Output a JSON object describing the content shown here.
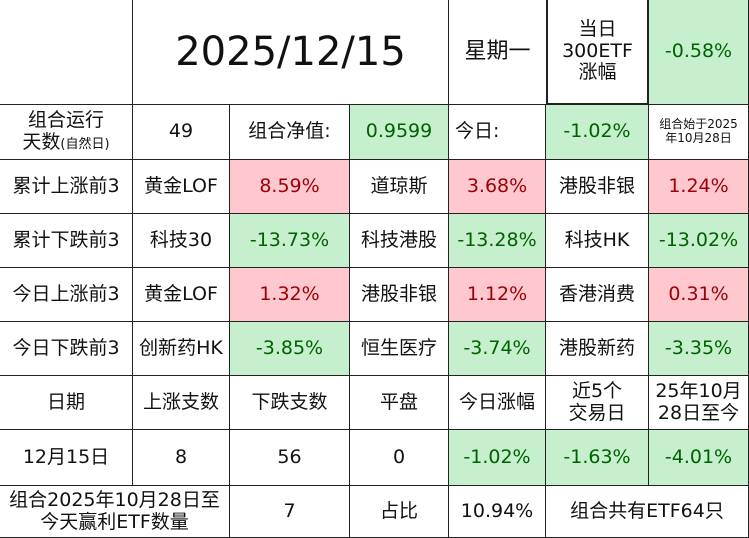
{
  "header": {
    "date": "2025/12/15",
    "weekday": "星期一",
    "etf_label_l1": "当日",
    "etf_label_l2": "300ETF",
    "etf_label_l3": "涨幅",
    "etf_change": "-0.58%"
  },
  "row_nav": {
    "label_main": "组合运行",
    "label_sub1": "天数",
    "label_sub2": "(自然日)",
    "days": "49",
    "nav_label": "组合净值:",
    "nav_value": "0.9599",
    "today_label": "今日:",
    "today_value": "-1.02%",
    "start_l1": "组合始于2025",
    "start_l2": "年10月28日"
  },
  "rows": [
    {
      "label": "累计上涨前3",
      "items": [
        {
          "name": "黄金LOF",
          "value": "8.59%",
          "dir": "pos"
        },
        {
          "name": "道琼斯",
          "value": "3.68%",
          "dir": "pos"
        },
        {
          "name": "港股非银",
          "value": "1.24%",
          "dir": "pos"
        }
      ]
    },
    {
      "label": "累计下跌前3",
      "items": [
        {
          "name": "科技30",
          "value": "-13.73%",
          "dir": "neg"
        },
        {
          "name": "科技港股",
          "value": "-13.28%",
          "dir": "neg"
        },
        {
          "name": "科技HK",
          "value": "-13.02%",
          "dir": "neg"
        }
      ]
    },
    {
      "label": "今日上涨前3",
      "items": [
        {
          "name": "黄金LOF",
          "value": "1.32%",
          "dir": "pos"
        },
        {
          "name": "港股非银",
          "value": "1.12%",
          "dir": "pos"
        },
        {
          "name": "香港消费",
          "value": "0.31%",
          "dir": "pos"
        }
      ]
    },
    {
      "label": "今日下跌前3",
      "items": [
        {
          "name": "创新药HK",
          "value": "-3.85%",
          "dir": "neg"
        },
        {
          "name": "恒生医疗",
          "value": "-3.74%",
          "dir": "neg"
        },
        {
          "name": "港股新药",
          "value": "-3.35%",
          "dir": "neg"
        }
      ]
    }
  ],
  "stats_header": {
    "date": "日期",
    "up": "上涨支数",
    "down": "下跌支数",
    "flat": "平盘",
    "today": "今日涨幅",
    "recent5_l1": "近5个",
    "recent5_l2": "交易日",
    "since_l1": "25年10月",
    "since_l2": "28日至今"
  },
  "stats_row": {
    "date": "12月15日",
    "up": "8",
    "down": "56",
    "flat": "0",
    "today": "-1.02%",
    "recent5": "-1.63%",
    "since": "-4.01%"
  },
  "footer": {
    "label_l1": "组合2025年10月28日至",
    "label_l2": "今天赢利ETF数量",
    "count": "7",
    "ratio_label": "占比",
    "ratio": "10.94%",
    "total": "组合共有ETF64只"
  }
}
